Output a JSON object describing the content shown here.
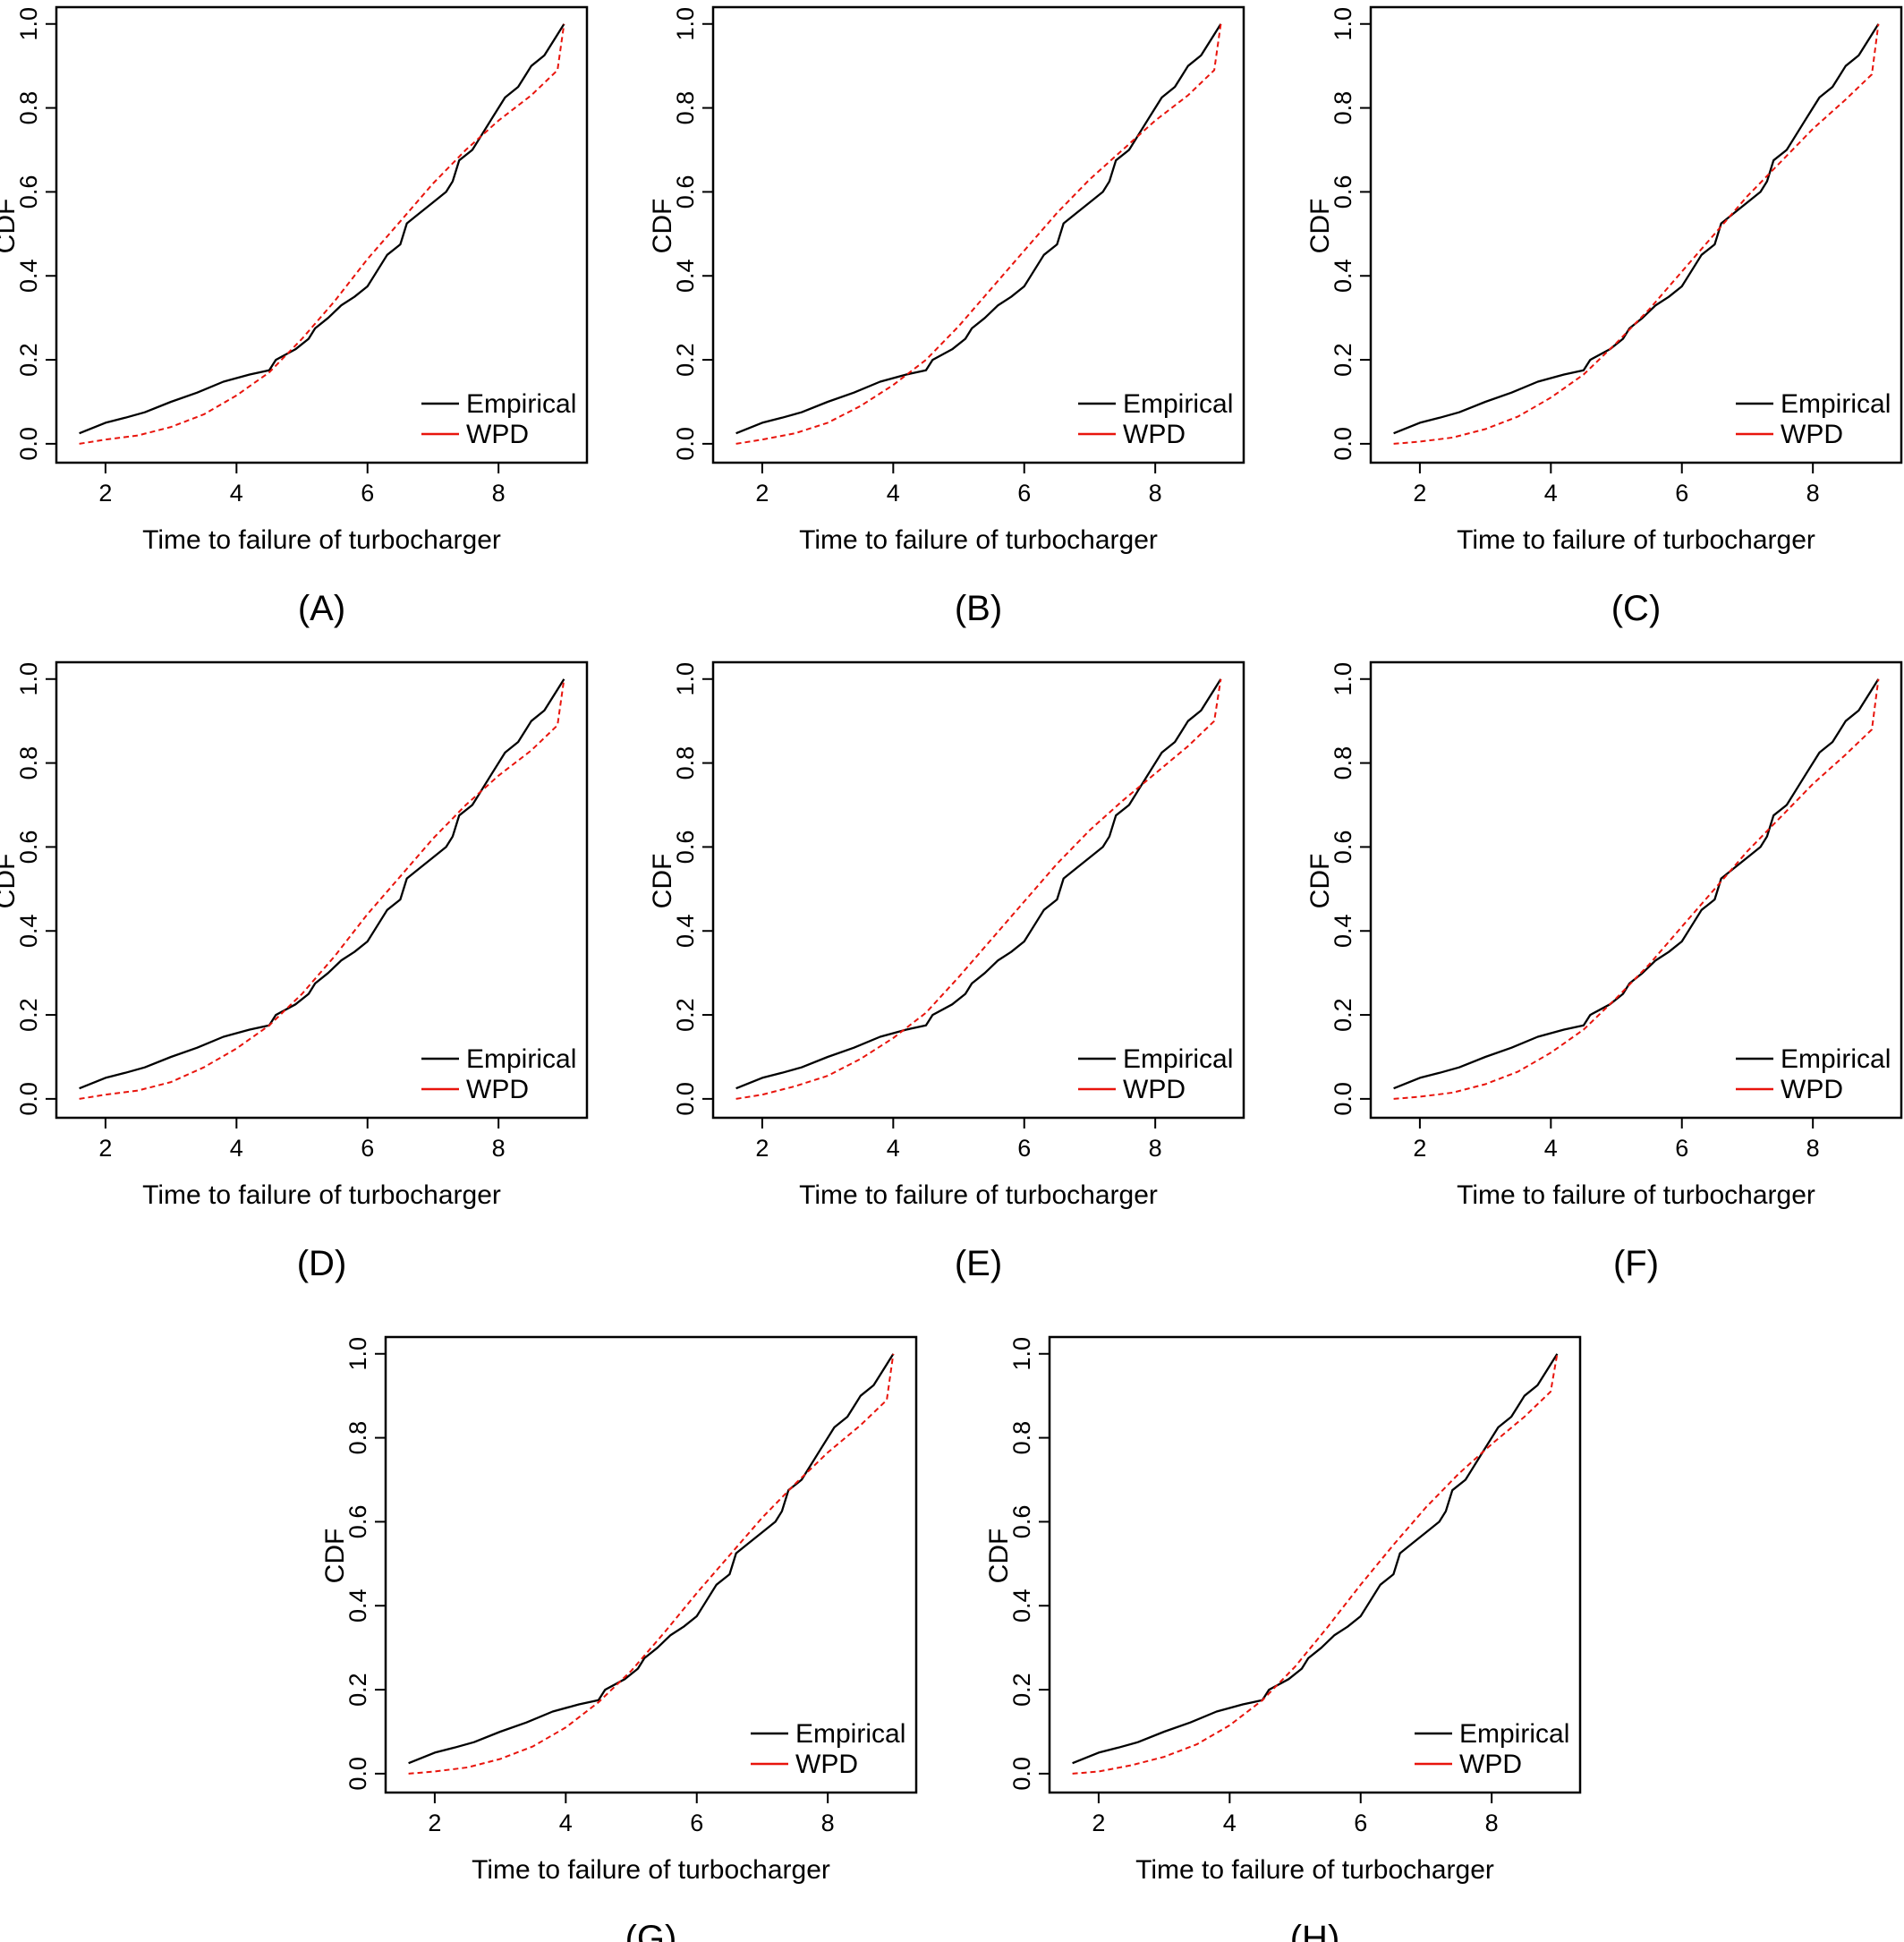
{
  "shared": {
    "xlabel": "Time to failure of turbocharger",
    "ylabel": "CDF",
    "legend": [
      "Empirical",
      "WPD"
    ],
    "colors": {
      "empirical": "#000000",
      "wpd": "#e8140c"
    },
    "xticks": [
      "2",
      "4",
      "6",
      "8"
    ],
    "yticks": [
      "0.0",
      "0.2",
      "0.4",
      "0.6",
      "0.8",
      "1.0"
    ]
  },
  "chart_data": [
    {
      "panel": "(A)",
      "type": "line",
      "xlabel": "Time to failure of turbocharger",
      "ylabel": "CDF",
      "xlim": [
        1.6,
        9.0
      ],
      "ylim": [
        0,
        1
      ],
      "legend": "bottom-right",
      "series": [
        {
          "name": "Empirical",
          "style": "solid",
          "x": [
            1.6,
            2.0,
            2.3,
            2.6,
            3.0,
            3.4,
            3.8,
            4.2,
            4.5,
            4.6,
            4.9,
            5.1,
            5.2,
            5.4,
            5.6,
            5.8,
            6.0,
            6.1,
            6.3,
            6.5,
            6.6,
            6.8,
            7.0,
            7.2,
            7.3,
            7.4,
            7.6,
            7.7,
            7.9,
            8.1,
            8.3,
            8.4,
            8.5,
            8.7,
            8.9,
            9.0
          ],
          "y": [
            0.025,
            0.05,
            0.062,
            0.075,
            0.1,
            0.122,
            0.148,
            0.165,
            0.175,
            0.2,
            0.225,
            0.25,
            0.275,
            0.3,
            0.33,
            0.35,
            0.375,
            0.4,
            0.45,
            0.475,
            0.525,
            0.55,
            0.575,
            0.6,
            0.625,
            0.675,
            0.7,
            0.725,
            0.775,
            0.825,
            0.85,
            0.875,
            0.9,
            0.925,
            0.975,
            1.0
          ]
        },
        {
          "name": "WPD",
          "style": "dashed",
          "x": [
            1.6,
            2.0,
            2.5,
            3.0,
            3.5,
            4.0,
            4.5,
            5.0,
            5.5,
            6.0,
            6.5,
            7.0,
            7.5,
            8.0,
            8.5,
            8.9,
            9.0
          ],
          "y": [
            0.0,
            0.01,
            0.02,
            0.04,
            0.07,
            0.115,
            0.17,
            0.25,
            0.34,
            0.44,
            0.53,
            0.62,
            0.7,
            0.77,
            0.83,
            0.89,
            1.0
          ]
        }
      ]
    },
    {
      "panel": "(B)",
      "type": "line",
      "xlabel": "Time to failure of turbocharger",
      "ylabel": "CDF",
      "xlim": [
        1.6,
        9.0
      ],
      "ylim": [
        0,
        1
      ],
      "legend": "bottom-right",
      "series": [
        {
          "name": "Empirical",
          "style": "solid",
          "x": [
            1.6,
            2.0,
            2.3,
            2.6,
            3.0,
            3.4,
            3.8,
            4.2,
            4.5,
            4.6,
            4.9,
            5.1,
            5.2,
            5.4,
            5.6,
            5.8,
            6.0,
            6.1,
            6.3,
            6.5,
            6.6,
            6.8,
            7.0,
            7.2,
            7.3,
            7.4,
            7.6,
            7.7,
            7.9,
            8.1,
            8.3,
            8.4,
            8.5,
            8.7,
            8.9,
            9.0
          ],
          "y": [
            0.025,
            0.05,
            0.062,
            0.075,
            0.1,
            0.122,
            0.148,
            0.165,
            0.175,
            0.2,
            0.225,
            0.25,
            0.275,
            0.3,
            0.33,
            0.35,
            0.375,
            0.4,
            0.45,
            0.475,
            0.525,
            0.55,
            0.575,
            0.6,
            0.625,
            0.675,
            0.7,
            0.725,
            0.775,
            0.825,
            0.85,
            0.875,
            0.9,
            0.925,
            0.975,
            1.0
          ]
        },
        {
          "name": "WPD",
          "style": "dashed",
          "x": [
            1.6,
            2.0,
            2.5,
            3.0,
            3.5,
            4.0,
            4.5,
            5.0,
            5.5,
            6.0,
            6.5,
            7.0,
            7.5,
            8.0,
            8.5,
            8.9,
            9.0
          ],
          "y": [
            0.0,
            0.01,
            0.025,
            0.05,
            0.09,
            0.14,
            0.2,
            0.28,
            0.37,
            0.46,
            0.55,
            0.63,
            0.7,
            0.77,
            0.83,
            0.89,
            1.0
          ]
        }
      ]
    },
    {
      "panel": "(C)",
      "type": "line",
      "xlabel": "Time to failure of turbocharger",
      "ylabel": "CDF",
      "xlim": [
        1.6,
        9.0
      ],
      "ylim": [
        0,
        1
      ],
      "legend": "bottom-right",
      "series": [
        {
          "name": "Empirical",
          "style": "solid",
          "x": [
            1.6,
            2.0,
            2.3,
            2.6,
            3.0,
            3.4,
            3.8,
            4.2,
            4.5,
            4.6,
            4.9,
            5.1,
            5.2,
            5.4,
            5.6,
            5.8,
            6.0,
            6.1,
            6.3,
            6.5,
            6.6,
            6.8,
            7.0,
            7.2,
            7.3,
            7.4,
            7.6,
            7.7,
            7.9,
            8.1,
            8.3,
            8.4,
            8.5,
            8.7,
            8.9,
            9.0
          ],
          "y": [
            0.025,
            0.05,
            0.062,
            0.075,
            0.1,
            0.122,
            0.148,
            0.165,
            0.175,
            0.2,
            0.225,
            0.25,
            0.275,
            0.3,
            0.33,
            0.35,
            0.375,
            0.4,
            0.45,
            0.475,
            0.525,
            0.55,
            0.575,
            0.6,
            0.625,
            0.675,
            0.7,
            0.725,
            0.775,
            0.825,
            0.85,
            0.875,
            0.9,
            0.925,
            0.975,
            1.0
          ]
        },
        {
          "name": "WPD",
          "style": "dashed",
          "x": [
            1.6,
            2.0,
            2.5,
            3.0,
            3.5,
            4.0,
            4.5,
            5.0,
            5.5,
            6.0,
            6.5,
            7.0,
            7.5,
            8.0,
            8.5,
            8.9,
            9.0
          ],
          "y": [
            0.0,
            0.005,
            0.015,
            0.035,
            0.065,
            0.11,
            0.165,
            0.24,
            0.32,
            0.41,
            0.5,
            0.59,
            0.67,
            0.75,
            0.82,
            0.88,
            1.0
          ]
        }
      ]
    },
    {
      "panel": "(D)",
      "type": "line",
      "xlabel": "Time to failure of turbocharger",
      "ylabel": "CDF",
      "xlim": [
        1.6,
        9.0
      ],
      "ylim": [
        0,
        1
      ],
      "legend": "bottom-right",
      "series": [
        {
          "name": "Empirical",
          "style": "solid",
          "x": [
            1.6,
            2.0,
            2.3,
            2.6,
            3.0,
            3.4,
            3.8,
            4.2,
            4.5,
            4.6,
            4.9,
            5.1,
            5.2,
            5.4,
            5.6,
            5.8,
            6.0,
            6.1,
            6.3,
            6.5,
            6.6,
            6.8,
            7.0,
            7.2,
            7.3,
            7.4,
            7.6,
            7.7,
            7.9,
            8.1,
            8.3,
            8.4,
            8.5,
            8.7,
            8.9,
            9.0
          ],
          "y": [
            0.025,
            0.05,
            0.062,
            0.075,
            0.1,
            0.122,
            0.148,
            0.165,
            0.175,
            0.2,
            0.225,
            0.25,
            0.275,
            0.3,
            0.33,
            0.35,
            0.375,
            0.4,
            0.45,
            0.475,
            0.525,
            0.55,
            0.575,
            0.6,
            0.625,
            0.675,
            0.7,
            0.725,
            0.775,
            0.825,
            0.85,
            0.875,
            0.9,
            0.925,
            0.975,
            1.0
          ]
        },
        {
          "name": "WPD",
          "style": "dashed",
          "x": [
            1.6,
            2.0,
            2.5,
            3.0,
            3.5,
            4.0,
            4.5,
            5.0,
            5.5,
            6.0,
            6.5,
            7.0,
            7.5,
            8.0,
            8.5,
            8.9,
            9.0
          ],
          "y": [
            0.0,
            0.01,
            0.02,
            0.04,
            0.075,
            0.12,
            0.175,
            0.25,
            0.34,
            0.44,
            0.53,
            0.62,
            0.7,
            0.77,
            0.83,
            0.89,
            1.0
          ]
        }
      ]
    },
    {
      "panel": "(E)",
      "type": "line",
      "xlabel": "Time to failure of turbocharger",
      "ylabel": "CDF",
      "xlim": [
        1.6,
        9.0
      ],
      "ylim": [
        0,
        1
      ],
      "legend": "bottom-right",
      "series": [
        {
          "name": "Empirical",
          "style": "solid",
          "x": [
            1.6,
            2.0,
            2.3,
            2.6,
            3.0,
            3.4,
            3.8,
            4.2,
            4.5,
            4.6,
            4.9,
            5.1,
            5.2,
            5.4,
            5.6,
            5.8,
            6.0,
            6.1,
            6.3,
            6.5,
            6.6,
            6.8,
            7.0,
            7.2,
            7.3,
            7.4,
            7.6,
            7.7,
            7.9,
            8.1,
            8.3,
            8.4,
            8.5,
            8.7,
            8.9,
            9.0
          ],
          "y": [
            0.025,
            0.05,
            0.062,
            0.075,
            0.1,
            0.122,
            0.148,
            0.165,
            0.175,
            0.2,
            0.225,
            0.25,
            0.275,
            0.3,
            0.33,
            0.35,
            0.375,
            0.4,
            0.45,
            0.475,
            0.525,
            0.55,
            0.575,
            0.6,
            0.625,
            0.675,
            0.7,
            0.725,
            0.775,
            0.825,
            0.85,
            0.875,
            0.9,
            0.925,
            0.975,
            1.0
          ]
        },
        {
          "name": "WPD",
          "style": "dashed",
          "x": [
            1.6,
            2.0,
            2.5,
            3.0,
            3.5,
            4.0,
            4.5,
            5.0,
            5.5,
            6.0,
            6.5,
            7.0,
            7.5,
            8.0,
            8.5,
            8.9,
            9.0
          ],
          "y": [
            0.0,
            0.01,
            0.03,
            0.055,
            0.095,
            0.145,
            0.205,
            0.29,
            0.38,
            0.47,
            0.56,
            0.64,
            0.71,
            0.775,
            0.84,
            0.9,
            1.0
          ]
        }
      ]
    },
    {
      "panel": "(F)",
      "type": "line",
      "xlabel": "Time to failure of turbocharger",
      "ylabel": "CDF",
      "xlim": [
        1.6,
        9.0
      ],
      "ylim": [
        0,
        1
      ],
      "legend": "bottom-right",
      "series": [
        {
          "name": "Empirical",
          "style": "solid",
          "x": [
            1.6,
            2.0,
            2.3,
            2.6,
            3.0,
            3.4,
            3.8,
            4.2,
            4.5,
            4.6,
            4.9,
            5.1,
            5.2,
            5.4,
            5.6,
            5.8,
            6.0,
            6.1,
            6.3,
            6.5,
            6.6,
            6.8,
            7.0,
            7.2,
            7.3,
            7.4,
            7.6,
            7.7,
            7.9,
            8.1,
            8.3,
            8.4,
            8.5,
            8.7,
            8.9,
            9.0
          ],
          "y": [
            0.025,
            0.05,
            0.062,
            0.075,
            0.1,
            0.122,
            0.148,
            0.165,
            0.175,
            0.2,
            0.225,
            0.25,
            0.275,
            0.3,
            0.33,
            0.35,
            0.375,
            0.4,
            0.45,
            0.475,
            0.525,
            0.55,
            0.575,
            0.6,
            0.625,
            0.675,
            0.7,
            0.725,
            0.775,
            0.825,
            0.85,
            0.875,
            0.9,
            0.925,
            0.975,
            1.0
          ]
        },
        {
          "name": "WPD",
          "style": "dashed",
          "x": [
            1.6,
            2.0,
            2.5,
            3.0,
            3.5,
            4.0,
            4.5,
            5.0,
            5.5,
            6.0,
            6.5,
            7.0,
            7.5,
            8.0,
            8.5,
            8.9,
            9.0
          ],
          "y": [
            0.0,
            0.005,
            0.015,
            0.035,
            0.065,
            0.11,
            0.165,
            0.24,
            0.32,
            0.41,
            0.5,
            0.59,
            0.67,
            0.75,
            0.82,
            0.88,
            1.0
          ]
        }
      ]
    },
    {
      "panel": "(G)",
      "type": "line",
      "xlabel": "Time to failure of turbocharger",
      "ylabel": "CDF",
      "xlim": [
        1.6,
        9.0
      ],
      "ylim": [
        0,
        1
      ],
      "legend": "bottom-right",
      "series": [
        {
          "name": "Empirical",
          "style": "solid",
          "x": [
            1.6,
            2.0,
            2.3,
            2.6,
            3.0,
            3.4,
            3.8,
            4.2,
            4.5,
            4.6,
            4.9,
            5.1,
            5.2,
            5.4,
            5.6,
            5.8,
            6.0,
            6.1,
            6.3,
            6.5,
            6.6,
            6.8,
            7.0,
            7.2,
            7.3,
            7.4,
            7.6,
            7.7,
            7.9,
            8.1,
            8.3,
            8.4,
            8.5,
            8.7,
            8.9,
            9.0
          ],
          "y": [
            0.025,
            0.05,
            0.062,
            0.075,
            0.1,
            0.122,
            0.148,
            0.165,
            0.175,
            0.2,
            0.225,
            0.25,
            0.275,
            0.3,
            0.33,
            0.35,
            0.375,
            0.4,
            0.45,
            0.475,
            0.525,
            0.55,
            0.575,
            0.6,
            0.625,
            0.675,
            0.7,
            0.725,
            0.775,
            0.825,
            0.85,
            0.875,
            0.9,
            0.925,
            0.975,
            1.0
          ]
        },
        {
          "name": "WPD",
          "style": "dashed",
          "x": [
            1.6,
            2.0,
            2.5,
            3.0,
            3.5,
            4.0,
            4.5,
            5.0,
            5.5,
            6.0,
            6.5,
            7.0,
            7.5,
            8.0,
            8.5,
            8.9,
            9.0
          ],
          "y": [
            0.0,
            0.005,
            0.015,
            0.035,
            0.065,
            0.11,
            0.17,
            0.245,
            0.335,
            0.43,
            0.52,
            0.61,
            0.69,
            0.765,
            0.83,
            0.89,
            1.0
          ]
        }
      ]
    },
    {
      "panel": "(H)",
      "type": "line",
      "xlabel": "Time to failure of turbocharger",
      "ylabel": "CDF",
      "xlim": [
        1.6,
        9.0
      ],
      "ylim": [
        0,
        1
      ],
      "legend": "bottom-right",
      "series": [
        {
          "name": "Empirical",
          "style": "solid",
          "x": [
            1.6,
            2.0,
            2.3,
            2.6,
            3.0,
            3.4,
            3.8,
            4.2,
            4.5,
            4.6,
            4.9,
            5.1,
            5.2,
            5.4,
            5.6,
            5.8,
            6.0,
            6.1,
            6.3,
            6.5,
            6.6,
            6.8,
            7.0,
            7.2,
            7.3,
            7.4,
            7.6,
            7.7,
            7.9,
            8.1,
            8.3,
            8.4,
            8.5,
            8.7,
            8.9,
            9.0
          ],
          "y": [
            0.025,
            0.05,
            0.062,
            0.075,
            0.1,
            0.122,
            0.148,
            0.165,
            0.175,
            0.2,
            0.225,
            0.25,
            0.275,
            0.3,
            0.33,
            0.35,
            0.375,
            0.4,
            0.45,
            0.475,
            0.525,
            0.55,
            0.575,
            0.6,
            0.625,
            0.675,
            0.7,
            0.725,
            0.775,
            0.825,
            0.85,
            0.875,
            0.9,
            0.925,
            0.975,
            1.0
          ]
        },
        {
          "name": "WPD",
          "style": "dashed",
          "x": [
            1.6,
            2.0,
            2.5,
            3.0,
            3.5,
            4.0,
            4.5,
            5.0,
            5.5,
            6.0,
            6.5,
            7.0,
            7.5,
            8.0,
            8.5,
            8.9,
            9.0
          ],
          "y": [
            0.0,
            0.005,
            0.02,
            0.04,
            0.07,
            0.115,
            0.175,
            0.255,
            0.35,
            0.45,
            0.545,
            0.635,
            0.715,
            0.785,
            0.85,
            0.91,
            1.0
          ]
        }
      ]
    }
  ]
}
